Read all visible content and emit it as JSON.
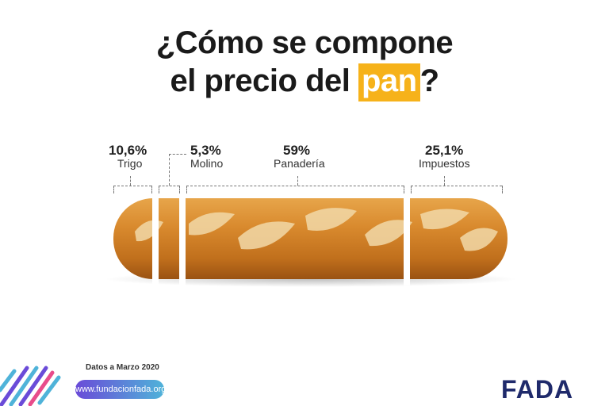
{
  "title": {
    "line1": "¿Cómo se compone",
    "line2_prefix": "el precio del ",
    "line2_highlight": "pan",
    "line2_suffix": "?"
  },
  "chart_data": {
    "type": "bar",
    "categories": [
      "Trigo",
      "Molino",
      "Panadería",
      "Impuestos"
    ],
    "values": [
      10.6,
      5.3,
      59,
      25.1
    ],
    "value_labels": [
      "10,6%",
      "5,3%",
      "59%",
      "25,1%"
    ],
    "unit": "%"
  },
  "colors": {
    "highlight": "#f6b21a",
    "brand_dark": "#1f2a6b",
    "brand_light": "#3db6e3"
  },
  "footer": {
    "date": "Datos a Marzo 2020",
    "url": "www.fundacionfada.org",
    "logo_text_a": "F",
    "logo_text_b": "ADA"
  }
}
